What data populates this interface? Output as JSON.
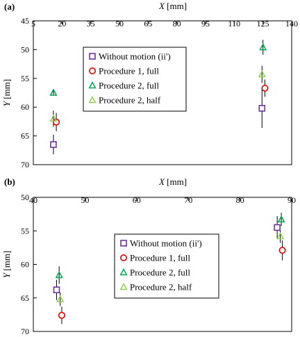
{
  "colors": {
    "without_motion": "#7030a0",
    "procedure1_full": "#e60000",
    "procedure2_full": "#00a651",
    "procedure2_half": "#92d050",
    "errorbar": "#000000"
  },
  "chart_data": [
    {
      "type": "scatter",
      "panel_label": "(a)",
      "xlabel_var": "X",
      "xlabel_unit": "[mm]",
      "ylabel_var": "Y",
      "ylabel_unit": "[mm]",
      "x_axis_position": "top",
      "y_inverted": true,
      "xlim": [
        5,
        140
      ],
      "ylim": [
        45,
        70
      ],
      "xticks": [
        5,
        20,
        35,
        50,
        65,
        80,
        95,
        110,
        125,
        140
      ],
      "yticks": [
        45,
        50,
        55,
        60,
        65,
        70
      ],
      "grid": false,
      "legend_position": "top-center",
      "series": [
        {
          "name": "Without motion (ii')",
          "marker": "square",
          "color_key": "without_motion",
          "points": [
            {
              "x": 15.5,
              "y": 66.5,
              "yerr_low": 64.8,
              "yerr_high": 68.2
            },
            {
              "x": 124.5,
              "y": 60.2,
              "yerr_low": 56.8,
              "yerr_high": 63.6
            }
          ]
        },
        {
          "name": "Procedure 1, full",
          "marker": "circle",
          "color_key": "procedure1_full",
          "points": [
            {
              "x": 17.0,
              "y": 62.6,
              "yerr_low": 61.0,
              "yerr_high": 64.2
            },
            {
              "x": 126.0,
              "y": 56.7,
              "yerr_low": 55.2,
              "yerr_high": 58.2
            }
          ]
        },
        {
          "name": "Procedure 2, full",
          "marker": "triangle",
          "color_key": "procedure2_full",
          "points": [
            {
              "x": 15.5,
              "y": 57.5,
              "yerr_low": 57.0,
              "yerr_high": 58.0
            },
            {
              "x": 125.0,
              "y": 49.6,
              "yerr_low": 48.3,
              "yerr_high": 50.9
            }
          ]
        },
        {
          "name": "Procedure 2, half",
          "marker": "triangle",
          "color_key": "procedure2_half",
          "points": [
            {
              "x": 15.5,
              "y": 62.0,
              "yerr_low": 60.6,
              "yerr_high": 63.4
            },
            {
              "x": 124.5,
              "y": 54.3,
              "yerr_low": 52.8,
              "yerr_high": 55.8
            }
          ]
        }
      ]
    },
    {
      "type": "scatter",
      "panel_label": "(b)",
      "xlabel_var": "X",
      "xlabel_unit": "[mm]",
      "ylabel_var": "Y",
      "ylabel_unit": "[mm]",
      "x_axis_position": "top",
      "y_inverted": true,
      "xlim": [
        40,
        90
      ],
      "ylim": [
        50,
        70
      ],
      "xticks": [
        40,
        50,
        60,
        70,
        80,
        90
      ],
      "yticks": [
        50,
        55,
        60,
        65,
        70
      ],
      "grid": false,
      "legend_position": "center-right",
      "series": [
        {
          "name": "Without motion (ii')",
          "marker": "square",
          "color_key": "without_motion",
          "points": [
            {
              "x": 44.5,
              "y": 63.8,
              "yerr_low": 62.3,
              "yerr_high": 65.3
            },
            {
              "x": 87.2,
              "y": 54.5,
              "yerr_low": 52.8,
              "yerr_high": 56.2
            }
          ]
        },
        {
          "name": "Procedure 1, full",
          "marker": "circle",
          "color_key": "procedure1_full",
          "points": [
            {
              "x": 45.5,
              "y": 67.6,
              "yerr_low": 66.3,
              "yerr_high": 68.9
            },
            {
              "x": 88.2,
              "y": 57.9,
              "yerr_low": 56.4,
              "yerr_high": 59.4
            }
          ]
        },
        {
          "name": "Procedure 2, full",
          "marker": "triangle",
          "color_key": "procedure2_full",
          "points": [
            {
              "x": 45.0,
              "y": 61.6,
              "yerr_low": 60.3,
              "yerr_high": 62.9
            },
            {
              "x": 88.0,
              "y": 53.3,
              "yerr_low": 52.3,
              "yerr_high": 54.3
            }
          ]
        },
        {
          "name": "Procedure 2, half",
          "marker": "triangle",
          "color_key": "procedure2_half",
          "points": [
            {
              "x": 45.2,
              "y": 65.2,
              "yerr_low": 64.2,
              "yerr_high": 66.2
            },
            {
              "x": 87.8,
              "y": 55.8,
              "yerr_low": 54.8,
              "yerr_high": 56.8
            }
          ]
        }
      ]
    }
  ]
}
